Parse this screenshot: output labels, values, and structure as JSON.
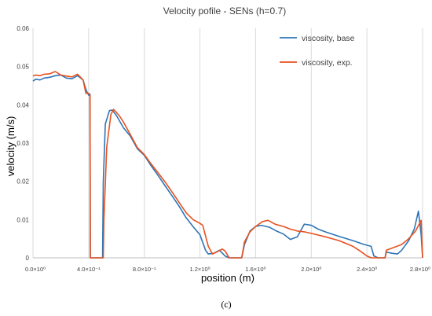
{
  "chart_data": {
    "type": "line",
    "title": "Velocity pofile - SENs (h=0.7)",
    "xlabel": "position  (m)",
    "ylabel": "velocity  (m/s)",
    "xlim": [
      0,
      2.8
    ],
    "ylim": [
      0,
      0.06
    ],
    "x_ticks": [
      {
        "value": 0.0,
        "label": "0.0×10⁰"
      },
      {
        "value": 0.4,
        "label": "4.0×10⁻¹"
      },
      {
        "value": 0.8,
        "label": "8.0×10⁻¹"
      },
      {
        "value": 1.2,
        "label": "1.2×10⁰"
      },
      {
        "value": 1.6,
        "label": "1.6×10⁰"
      },
      {
        "value": 2.0,
        "label": "2.0×10⁰"
      },
      {
        "value": 2.4,
        "label": "2.4×10⁰"
      },
      {
        "value": 2.8,
        "label": "2.8×10⁰"
      }
    ],
    "y_ticks": [
      {
        "value": 0.0,
        "label": "0"
      },
      {
        "value": 0.01,
        "label": "0.01"
      },
      {
        "value": 0.02,
        "label": "0.02"
      },
      {
        "value": 0.03,
        "label": "0.03"
      },
      {
        "value": 0.04,
        "label": "0.04"
      },
      {
        "value": 0.05,
        "label": "0.05"
      },
      {
        "value": 0.06,
        "label": "0.06"
      }
    ],
    "grid": "vertical",
    "legend_position": "top-right",
    "series": [
      {
        "name": "viscosity, base",
        "color": "#2e75b6",
        "points": [
          [
            0.0,
            0.0462
          ],
          [
            0.02,
            0.0467
          ],
          [
            0.05,
            0.0465
          ],
          [
            0.08,
            0.047
          ],
          [
            0.12,
            0.0472
          ],
          [
            0.16,
            0.0476
          ],
          [
            0.2,
            0.0478
          ],
          [
            0.24,
            0.047
          ],
          [
            0.28,
            0.0468
          ],
          [
            0.32,
            0.0476
          ],
          [
            0.36,
            0.0465
          ],
          [
            0.38,
            0.044
          ],
          [
            0.4,
            0.0425
          ],
          [
            0.41,
            0.0428
          ],
          [
            0.412,
            0.0
          ],
          [
            0.5,
            0.0
          ],
          [
            0.505,
            0.02
          ],
          [
            0.52,
            0.035
          ],
          [
            0.55,
            0.0385
          ],
          [
            0.57,
            0.0386
          ],
          [
            0.6,
            0.0372
          ],
          [
            0.65,
            0.034
          ],
          [
            0.7,
            0.0318
          ],
          [
            0.75,
            0.0285
          ],
          [
            0.8,
            0.0268
          ],
          [
            0.85,
            0.024
          ],
          [
            0.9,
            0.0215
          ],
          [
            0.95,
            0.0188
          ],
          [
            1.0,
            0.0162
          ],
          [
            1.05,
            0.0135
          ],
          [
            1.1,
            0.0105
          ],
          [
            1.15,
            0.0082
          ],
          [
            1.2,
            0.006
          ],
          [
            1.24,
            0.002
          ],
          [
            1.26,
            0.001
          ],
          [
            1.3,
            0.0012
          ],
          [
            1.34,
            0.002
          ],
          [
            1.38,
            0.0005
          ],
          [
            1.41,
            0.0
          ],
          [
            1.5,
            0.0
          ],
          [
            1.52,
            0.0035
          ],
          [
            1.56,
            0.007
          ],
          [
            1.6,
            0.0082
          ],
          [
            1.64,
            0.0085
          ],
          [
            1.7,
            0.008
          ],
          [
            1.75,
            0.007
          ],
          [
            1.8,
            0.0062
          ],
          [
            1.85,
            0.0048
          ],
          [
            1.9,
            0.0055
          ],
          [
            1.93,
            0.0075
          ],
          [
            1.95,
            0.0088
          ],
          [
            2.0,
            0.0085
          ],
          [
            2.05,
            0.0075
          ],
          [
            2.1,
            0.0068
          ],
          [
            2.2,
            0.0056
          ],
          [
            2.3,
            0.0045
          ],
          [
            2.38,
            0.0035
          ],
          [
            2.43,
            0.003
          ],
          [
            2.45,
            0.0005
          ],
          [
            2.48,
            0.0
          ],
          [
            2.53,
            0.0
          ],
          [
            2.54,
            0.0015
          ],
          [
            2.58,
            0.0012
          ],
          [
            2.62,
            0.001
          ],
          [
            2.65,
            0.002
          ],
          [
            2.7,
            0.0045
          ],
          [
            2.74,
            0.0075
          ],
          [
            2.77,
            0.0122
          ],
          [
            2.79,
            0.006
          ],
          [
            2.8,
            0.0
          ]
        ]
      },
      {
        "name": "viscosity, exp.",
        "color": "#e8511f",
        "points": [
          [
            0.0,
            0.0475
          ],
          [
            0.02,
            0.0478
          ],
          [
            0.05,
            0.0476
          ],
          [
            0.08,
            0.048
          ],
          [
            0.12,
            0.0481
          ],
          [
            0.16,
            0.0487
          ],
          [
            0.2,
            0.0478
          ],
          [
            0.24,
            0.0475
          ],
          [
            0.28,
            0.0473
          ],
          [
            0.32,
            0.048
          ],
          [
            0.36,
            0.0465
          ],
          [
            0.38,
            0.043
          ],
          [
            0.4,
            0.043
          ],
          [
            0.41,
            0.0425
          ],
          [
            0.412,
            0.0
          ],
          [
            0.505,
            0.0
          ],
          [
            0.51,
            0.01
          ],
          [
            0.53,
            0.029
          ],
          [
            0.56,
            0.0375
          ],
          [
            0.58,
            0.0388
          ],
          [
            0.62,
            0.0372
          ],
          [
            0.65,
            0.0355
          ],
          [
            0.7,
            0.0322
          ],
          [
            0.75,
            0.0288
          ],
          [
            0.8,
            0.027
          ],
          [
            0.85,
            0.0245
          ],
          [
            0.9,
            0.0222
          ],
          [
            0.95,
            0.0198
          ],
          [
            1.0,
            0.0172
          ],
          [
            1.05,
            0.0145
          ],
          [
            1.1,
            0.0118
          ],
          [
            1.15,
            0.01
          ],
          [
            1.2,
            0.009
          ],
          [
            1.22,
            0.0085
          ],
          [
            1.26,
            0.003
          ],
          [
            1.29,
            0.001
          ],
          [
            1.32,
            0.0015
          ],
          [
            1.36,
            0.0023
          ],
          [
            1.38,
            0.0018
          ],
          [
            1.41,
            0.0
          ],
          [
            1.5,
            0.0
          ],
          [
            1.52,
            0.0042
          ],
          [
            1.56,
            0.0068
          ],
          [
            1.6,
            0.0082
          ],
          [
            1.65,
            0.0095
          ],
          [
            1.69,
            0.0098
          ],
          [
            1.74,
            0.0088
          ],
          [
            1.8,
            0.0082
          ],
          [
            1.85,
            0.0075
          ],
          [
            1.9,
            0.007
          ],
          [
            1.95,
            0.0068
          ],
          [
            2.0,
            0.0064
          ],
          [
            2.1,
            0.0055
          ],
          [
            2.2,
            0.0045
          ],
          [
            2.3,
            0.003
          ],
          [
            2.35,
            0.0018
          ],
          [
            2.4,
            0.0005
          ],
          [
            2.43,
            0.0
          ],
          [
            2.53,
            0.0
          ],
          [
            2.54,
            0.002
          ],
          [
            2.6,
            0.0028
          ],
          [
            2.65,
            0.0035
          ],
          [
            2.7,
            0.005
          ],
          [
            2.75,
            0.007
          ],
          [
            2.79,
            0.0098
          ],
          [
            2.8,
            0.0
          ]
        ]
      }
    ]
  },
  "caption": "(c)"
}
